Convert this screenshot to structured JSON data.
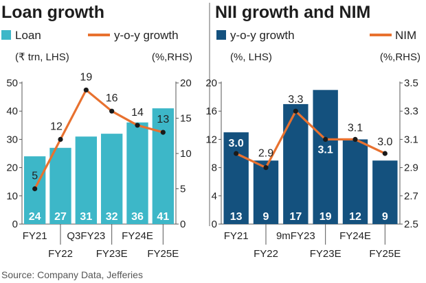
{
  "colors": {
    "loan_bar": "#3db7c8",
    "nii_bar": "#14517e",
    "line": "#e8712f",
    "marker": "#1a1a1a",
    "axis": "#555555"
  },
  "source": "Source: Company Data, Jefferies",
  "chart_data": [
    {
      "type": "bar",
      "title": "Loan growth",
      "categories": [
        "FY21",
        "FY22",
        "Q3FY23",
        "FY23E",
        "FY24E",
        "FY25E"
      ],
      "series": [
        {
          "name": "Loan",
          "axis": "left",
          "unit": "(₹ trn, LHS)",
          "values": [
            24,
            27,
            31,
            32,
            36,
            41
          ],
          "labels": [
            "24",
            "27",
            "31",
            "32",
            "36",
            "41"
          ]
        },
        {
          "name": "y-o-y growth",
          "axis": "right",
          "unit": "(%,RHS)",
          "type": "line",
          "values": [
            5,
            12,
            19,
            16,
            14,
            13
          ],
          "labels": [
            "5",
            "12",
            "19",
            "16",
            "14",
            "13"
          ]
        }
      ],
      "y_left": {
        "lim": [
          0,
          50
        ],
        "ticks": [
          "0",
          "10",
          "20",
          "30",
          "40",
          "50"
        ]
      },
      "y_right": {
        "lim": [
          0,
          20
        ],
        "ticks": [
          "0",
          "5",
          "10",
          "15",
          "20"
        ]
      },
      "grid": false,
      "legend": "top"
    },
    {
      "type": "bar",
      "title": "NII growth and NIM",
      "categories": [
        "FY21",
        "FY22",
        "9mFY23",
        "FY23E",
        "FY24E",
        "FY25E"
      ],
      "series": [
        {
          "name": "y-o-y growth",
          "axis": "left",
          "unit": "(%, LHS)",
          "values": [
            13,
            9,
            17,
            19,
            12,
            9
          ],
          "labels": [
            "13",
            "9",
            "17",
            "19",
            "12",
            "9"
          ]
        },
        {
          "name": "NIM",
          "axis": "right",
          "unit": "(%,RHS)",
          "type": "line",
          "values": [
            3.0,
            2.9,
            3.3,
            3.1,
            3.1,
            3.0
          ],
          "labels": [
            "3.0",
            "2.9",
            "3.3",
            "3.1",
            "3.1",
            "3.0"
          ]
        }
      ],
      "y_left": {
        "lim": [
          0,
          20
        ],
        "ticks": [
          "0",
          "4",
          "8",
          "12",
          "16",
          "20"
        ]
      },
      "y_right": {
        "lim": [
          2.5,
          3.5
        ],
        "ticks": [
          "2.5",
          "2.7",
          "2.9",
          "3.1",
          "3.3",
          "3.5"
        ]
      },
      "grid": false,
      "legend": "top"
    }
  ]
}
